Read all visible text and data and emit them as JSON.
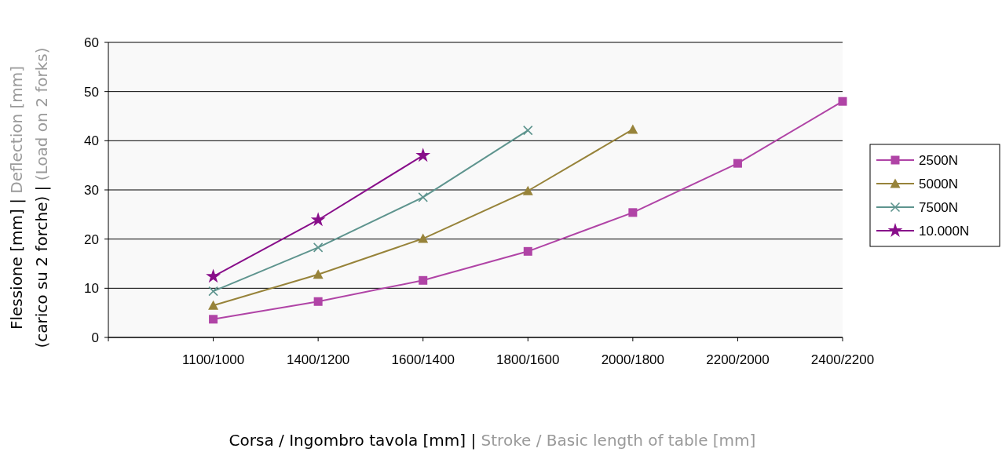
{
  "chart_data": {
    "type": "line",
    "xlabel": "Corsa / Ingombro tavola [mm] | Stroke / Basic length of table [mm]",
    "ylabel": "Flessione [mm] | Deflection [mm]\n(carico su 2 forche) | (Load on 2 forks)",
    "categories": [
      null,
      "1100/1000",
      "1400/1200",
      "1600/1400",
      "1800/1600",
      "2000/1800",
      "2200/2000",
      "2400/2200"
    ],
    "series": [
      {
        "name": "2500N",
        "color": "#b044a6",
        "marker": "square",
        "values": [
          null,
          3.7,
          7.3,
          11.6,
          17.5,
          25.4,
          35.4,
          48.0
        ]
      },
      {
        "name": "5000N",
        "color": "#97833a",
        "marker": "triangle",
        "values": [
          null,
          6.5,
          12.8,
          20.1,
          29.8,
          42.3,
          null,
          null
        ]
      },
      {
        "name": "7500N",
        "color": "#5e948e",
        "marker": "cross",
        "values": [
          null,
          9.4,
          18.3,
          28.5,
          42.1,
          null,
          null,
          null
        ]
      },
      {
        "name": "10.000N",
        "color": "#880e8a",
        "marker": "star",
        "values": [
          null,
          12.4,
          23.9,
          37.0,
          null,
          null,
          null,
          null
        ]
      }
    ],
    "ylim": [
      0,
      60
    ],
    "yticks": [
      0,
      10,
      20,
      30,
      40,
      50,
      60
    ],
    "grid": "y",
    "legend": "right"
  }
}
